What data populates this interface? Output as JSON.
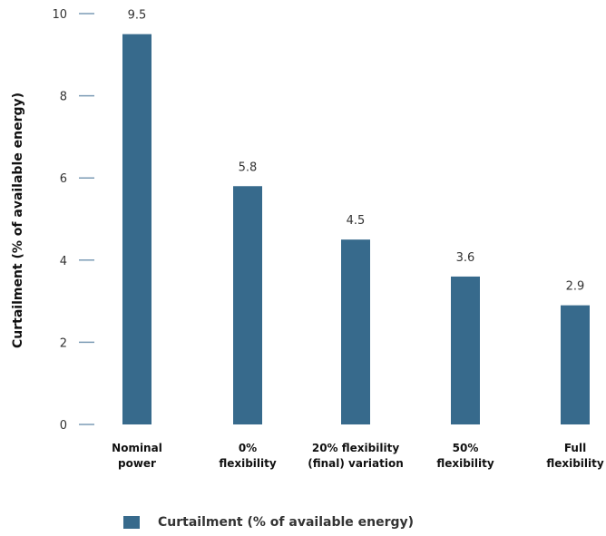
{
  "chart_data": {
    "type": "bar",
    "categories": [
      [
        "Nominal",
        "power"
      ],
      [
        "0%",
        "flexibility"
      ],
      [
        "20% flexibility",
        "(final) variation"
      ],
      [
        "50%",
        "flexibility"
      ],
      [
        "Full",
        "flexibility"
      ]
    ],
    "values": [
      9.5,
      5.8,
      4.5,
      3.6,
      2.9
    ],
    "value_labels": [
      "9.5",
      "5.8",
      "4.5",
      "3.6",
      "2.9"
    ],
    "ylabel": "Curtailment (% of available energy)",
    "ylim": [
      0,
      10
    ],
    "yticks": [
      "0",
      "2",
      "4",
      "6",
      "8",
      "10"
    ],
    "grid": false,
    "legend": {
      "position": "bottom",
      "entries": [
        "Curtailment (% of available energy)"
      ]
    },
    "colors": {
      "bar": "#376a8c",
      "tick": "#7b9bb5"
    }
  }
}
